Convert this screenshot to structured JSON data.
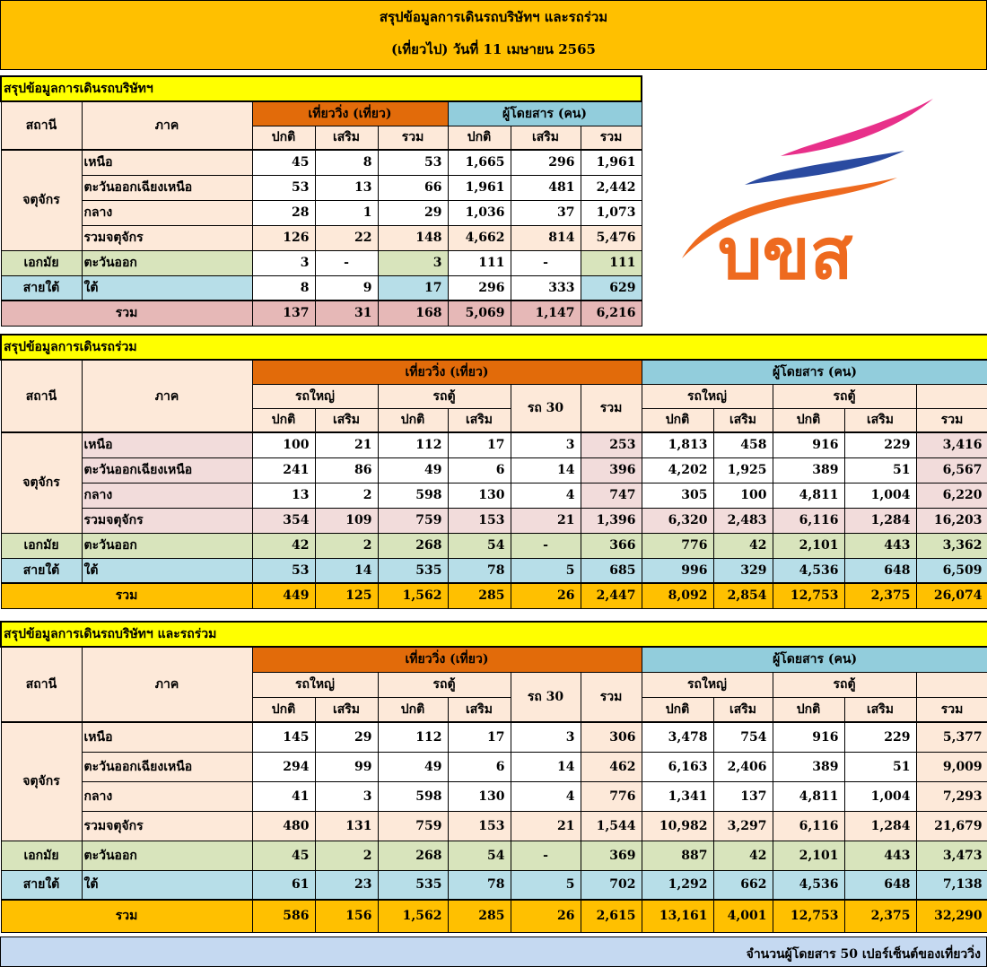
{
  "header": {
    "line1": "สรุปข้อมูลการเดินรถบริษัทฯ และรถร่วม",
    "line2": "(เที่ยวไป) วันที่ 11 เมษายน 2565"
  },
  "logo": {
    "text": "บขส",
    "colors": [
      "#e8308a",
      "#2a4aa0",
      "#ee6a1f"
    ]
  },
  "common": {
    "station": "สถานี",
    "region": "ภาค",
    "trips": "เที่ยววิ่ง (เที่ยว)",
    "passengers": "ผู้โดยสาร (คน)",
    "normal": "ปกติ",
    "extra": "เสริม",
    "total": "รวม",
    "big_bus": "รถใหญ่",
    "van": "รถตู้",
    "bus30": "รถ 30"
  },
  "t1": {
    "title": "สรุปข้อมูลการเดินรถบริษัทฯ",
    "stations": {
      "jatu": "จตุจักร",
      "ekkamai": "เอกมัย",
      "saitai": "สายใต้"
    },
    "rows": [
      {
        "region": "เหนือ",
        "v": [
          "45",
          "8",
          "53",
          "1,665",
          "296",
          "1,961"
        ]
      },
      {
        "region": "ตะวันออกเฉียงเหนือ",
        "v": [
          "53",
          "13",
          "66",
          "1,961",
          "481",
          "2,442"
        ]
      },
      {
        "region": "กลาง",
        "v": [
          "28",
          "1",
          "29",
          "1,036",
          "37",
          "1,073"
        ]
      },
      {
        "region": "รวมจตุจักร",
        "v": [
          "126",
          "22",
          "148",
          "4,662",
          "814",
          "5,476"
        ]
      },
      {
        "region": "ตะวันออก",
        "v": [
          "3",
          "-",
          "3",
          "111",
          "-",
          "111"
        ]
      },
      {
        "region": "ใต้",
        "v": [
          "8",
          "9",
          "17",
          "296",
          "333",
          "629"
        ]
      }
    ],
    "total": {
      "label": "รวม",
      "v": [
        "137",
        "31",
        "168",
        "5,069",
        "1,147",
        "6,216"
      ]
    }
  },
  "t2": {
    "title": "สรุปข้อมูลการเดินรถร่วม",
    "stations": {
      "jatu": "จตุจักร",
      "ekkamai": "เอกมัย",
      "saitai": "สายใต้"
    },
    "rows": [
      {
        "region": "เหนือ",
        "v": [
          "100",
          "21",
          "112",
          "17",
          "3",
          "253",
          "1,813",
          "458",
          "916",
          "229",
          "3,416"
        ]
      },
      {
        "region": "ตะวันออกเฉียงเหนือ",
        "v": [
          "241",
          "86",
          "49",
          "6",
          "14",
          "396",
          "4,202",
          "1,925",
          "389",
          "51",
          "6,567"
        ]
      },
      {
        "region": "กลาง",
        "v": [
          "13",
          "2",
          "598",
          "130",
          "4",
          "747",
          "305",
          "100",
          "4,811",
          "1,004",
          "6,220"
        ]
      },
      {
        "region": "รวมจตุจักร",
        "v": [
          "354",
          "109",
          "759",
          "153",
          "21",
          "1,396",
          "6,320",
          "2,483",
          "6,116",
          "1,284",
          "16,203"
        ]
      },
      {
        "region": "ตะวันออก",
        "v": [
          "42",
          "2",
          "268",
          "54",
          "-",
          "366",
          "776",
          "42",
          "2,101",
          "443",
          "3,362"
        ]
      },
      {
        "region": "ใต้",
        "v": [
          "53",
          "14",
          "535",
          "78",
          "5",
          "685",
          "996",
          "329",
          "4,536",
          "648",
          "6,509"
        ]
      }
    ],
    "total": {
      "label": "รวม",
      "v": [
        "449",
        "125",
        "1,562",
        "285",
        "26",
        "2,447",
        "8,092",
        "2,854",
        "12,753",
        "2,375",
        "26,074"
      ]
    }
  },
  "t3": {
    "title": "สรุปข้อมูลการเดินรถบริษัทฯ และรถร่วม",
    "stations": {
      "jatu": "จตุจักร",
      "ekkamai": "เอกมัย",
      "saitai": "สายใต้"
    },
    "rows": [
      {
        "region": "เหนือ",
        "v": [
          "145",
          "29",
          "112",
          "17",
          "3",
          "306",
          "3,478",
          "754",
          "916",
          "229",
          "5,377"
        ]
      },
      {
        "region": "ตะวันออกเฉียงเหนือ",
        "v": [
          "294",
          "99",
          "49",
          "6",
          "14",
          "462",
          "6,163",
          "2,406",
          "389",
          "51",
          "9,009"
        ]
      },
      {
        "region": "กลาง",
        "v": [
          "41",
          "3",
          "598",
          "130",
          "4",
          "776",
          "1,341",
          "137",
          "4,811",
          "1,004",
          "7,293"
        ]
      },
      {
        "region": "รวมจตุจักร",
        "v": [
          "480",
          "131",
          "759",
          "153",
          "21",
          "1,544",
          "10,982",
          "3,297",
          "6,116",
          "1,284",
          "21,679"
        ]
      },
      {
        "region": "ตะวันออก",
        "v": [
          "45",
          "2",
          "268",
          "54",
          "-",
          "369",
          "887",
          "42",
          "2,101",
          "443",
          "3,473"
        ]
      },
      {
        "region": "ใต้",
        "v": [
          "61",
          "23",
          "535",
          "78",
          "5",
          "702",
          "1,292",
          "662",
          "4,536",
          "648",
          "7,138"
        ]
      }
    ],
    "total": {
      "label": "รวม",
      "v": [
        "586",
        "156",
        "1,562",
        "285",
        "26",
        "2,615",
        "13,161",
        "4,001",
        "12,753",
        "2,375",
        "32,290"
      ]
    }
  },
  "footnote": "จำนวนผู้โดยสาร 50 เปอร์เซ็นต์ของเที่ยววิ่ง"
}
